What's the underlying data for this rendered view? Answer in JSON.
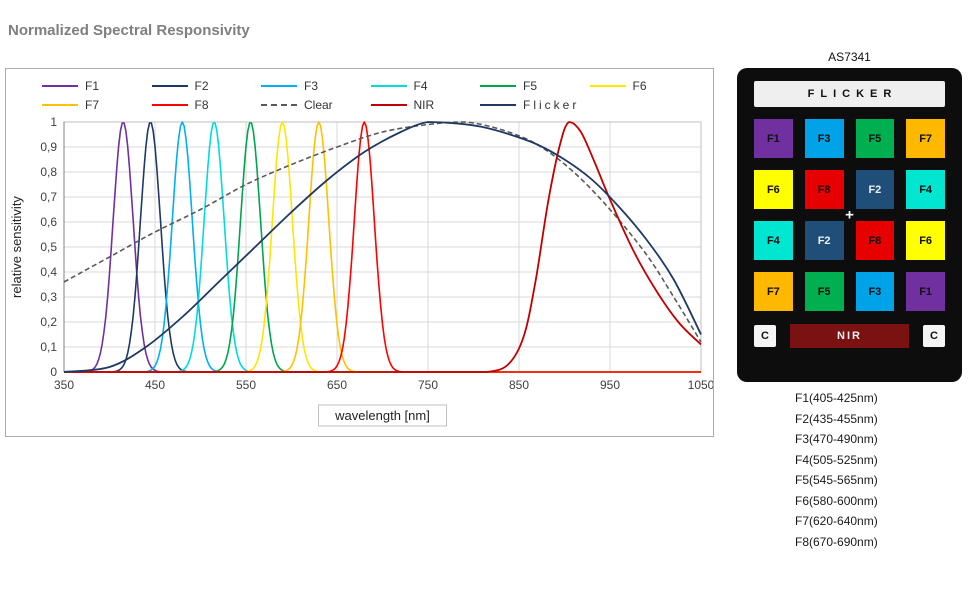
{
  "chart_data": {
    "type": "line",
    "title": "Normalized Spectral Responsivity",
    "xlabel": "wavelength [nm]",
    "ylabel": "relative sensitivity",
    "xlim": [
      350,
      1050
    ],
    "ylim": [
      0,
      1
    ],
    "x_ticks": [
      350,
      450,
      550,
      650,
      750,
      850,
      950,
      1050
    ],
    "y_ticks": [
      "0",
      "0,1",
      "0,2",
      "0,3",
      "0,4",
      "0,5",
      "0,6",
      "0,7",
      "0,8",
      "0,9",
      "1"
    ],
    "grid": true,
    "legend_position": "top",
    "series": [
      {
        "name": "F1",
        "color": "#7030a0",
        "style": "solid",
        "width": 1.6,
        "shape": "gaussian",
        "center": 415,
        "sigma": 11,
        "peak": 1
      },
      {
        "name": "F2",
        "color": "#203864",
        "style": "solid",
        "width": 1.6,
        "shape": "gaussian",
        "center": 445,
        "sigma": 11,
        "peak": 1
      },
      {
        "name": "F3",
        "color": "#00b0f0",
        "style": "solid",
        "width": 1.6,
        "shape": "gaussian",
        "center": 480,
        "sigma": 11,
        "peak": 1
      },
      {
        "name": "F4",
        "color": "#00dcdc",
        "style": "solid",
        "width": 1.6,
        "shape": "gaussian",
        "center": 515,
        "sigma": 11,
        "peak": 1
      },
      {
        "name": "F5",
        "color": "#00a550",
        "style": "solid",
        "width": 1.6,
        "shape": "gaussian",
        "center": 555,
        "sigma": 11,
        "peak": 1
      },
      {
        "name": "F6",
        "color": "#ffe500",
        "style": "solid",
        "width": 1.6,
        "shape": "gaussian",
        "center": 590,
        "sigma": 11,
        "peak": 1
      },
      {
        "name": "F7",
        "color": "#ffc000",
        "style": "solid",
        "width": 1.6,
        "shape": "gaussian",
        "center": 630,
        "sigma": 11,
        "peak": 1
      },
      {
        "name": "F8",
        "color": "#ff0000",
        "style": "solid",
        "width": 1.6,
        "shape": "gaussian",
        "center": 680,
        "sigma": 11,
        "peak": 1
      },
      {
        "name": "Clear",
        "color": "#595959",
        "style": "dashed",
        "width": 1.6,
        "shape": "points",
        "points": [
          [
            350,
            0.36
          ],
          [
            400,
            0.46
          ],
          [
            450,
            0.56
          ],
          [
            500,
            0.65
          ],
          [
            550,
            0.75
          ],
          [
            600,
            0.83
          ],
          [
            650,
            0.9
          ],
          [
            700,
            0.96
          ],
          [
            750,
            0.99
          ],
          [
            790,
            1.0
          ],
          [
            830,
            0.97
          ],
          [
            870,
            0.91
          ],
          [
            910,
            0.8
          ],
          [
            950,
            0.65
          ],
          [
            990,
            0.47
          ],
          [
            1020,
            0.3
          ],
          [
            1050,
            0.12
          ]
        ]
      },
      {
        "name": "NIR",
        "color": "#c00000",
        "style": "solid",
        "width": 1.8,
        "shape": "points",
        "points": [
          [
            350,
            0
          ],
          [
            500,
            0
          ],
          [
            650,
            0
          ],
          [
            780,
            0
          ],
          [
            815,
            0
          ],
          [
            838,
            0.03
          ],
          [
            855,
            0.14
          ],
          [
            868,
            0.36
          ],
          [
            882,
            0.68
          ],
          [
            895,
            0.91
          ],
          [
            905,
            1.0
          ],
          [
            918,
            0.96
          ],
          [
            933,
            0.84
          ],
          [
            950,
            0.69
          ],
          [
            975,
            0.49
          ],
          [
            1000,
            0.33
          ],
          [
            1025,
            0.2
          ],
          [
            1050,
            0.11
          ]
        ]
      },
      {
        "name": "Flicker",
        "color": "#1f3864",
        "style": "solid",
        "width": 1.8,
        "shape": "points",
        "spaced_label": true,
        "points": [
          [
            350,
            0
          ],
          [
            400,
            0.02
          ],
          [
            440,
            0.1
          ],
          [
            480,
            0.22
          ],
          [
            520,
            0.36
          ],
          [
            560,
            0.5
          ],
          [
            600,
            0.64
          ],
          [
            640,
            0.77
          ],
          [
            680,
            0.88
          ],
          [
            720,
            0.96
          ],
          [
            750,
            1.0
          ],
          [
            780,
            0.995
          ],
          [
            810,
            0.98
          ],
          [
            840,
            0.95
          ],
          [
            870,
            0.91
          ],
          [
            900,
            0.85
          ],
          [
            930,
            0.77
          ],
          [
            960,
            0.66
          ],
          [
            990,
            0.53
          ],
          [
            1020,
            0.37
          ],
          [
            1050,
            0.15
          ]
        ]
      }
    ]
  },
  "sensor": {
    "title": "AS7341",
    "flicker_label": "FLICKER",
    "nir_label": "NIR",
    "clear_label": "C",
    "plus_label": "+",
    "grid": [
      [
        "F1",
        "F3",
        "F5",
        "F7"
      ],
      [
        "F6",
        "F8",
        "F2",
        "F4"
      ],
      [
        "F4",
        "F2",
        "F8",
        "F6"
      ],
      [
        "F7",
        "F5",
        "F3",
        "F1"
      ]
    ],
    "colors": {
      "F1": "#7030a0",
      "F2": "#1f4e79",
      "F3": "#00a3e8",
      "F4": "#00e6d0",
      "F5": "#00b050",
      "F6": "#ffff00",
      "F7": "#ffb800",
      "F8": "#e60000",
      "NIR": "#7a1212"
    },
    "light_text_cells": [
      "F2"
    ]
  },
  "filters": [
    "F1(405-425nm)",
    "F2(435-455nm)",
    "F3(470-490nm)",
    "F4(505-525nm)",
    "F5(545-565nm)",
    "F6(580-600nm)",
    "F7(620-640nm)",
    "F8(670-690nm)"
  ]
}
